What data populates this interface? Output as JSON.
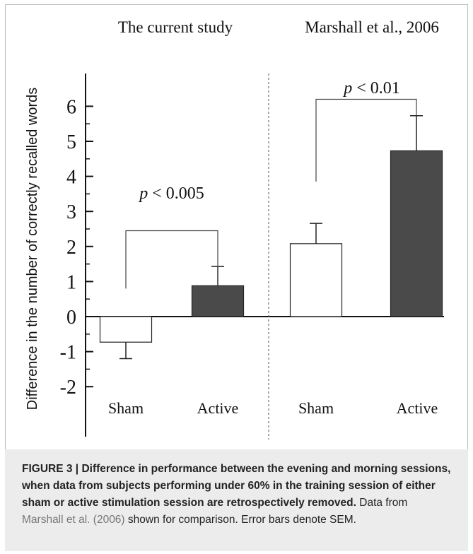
{
  "chart_data": {
    "type": "bar",
    "ylabel": "Difference in the number of correctly recalled words",
    "yticks": [
      "-2",
      "-1",
      "0",
      "1",
      "2",
      "3",
      "4",
      "5",
      "6"
    ],
    "ylim": [
      -3.4,
      7
    ],
    "groups": [
      {
        "title": "The current study",
        "categories": [
          "Sham",
          "Active"
        ],
        "values": [
          -0.73,
          0.88
        ],
        "errors": [
          0.47,
          0.55
        ],
        "colors": [
          "#ffffff",
          "#4a4a4a"
        ],
        "significance": {
          "left": "0.8",
          "right": "0.8",
          "top": "2.45",
          "p_label": "p < 0.005"
        }
      },
      {
        "title": "Marshall et al., 2006",
        "categories": [
          "Sham",
          "Active"
        ],
        "values": [
          2.08,
          4.73
        ],
        "errors": [
          0.58,
          1.0
        ],
        "colors": [
          "#ffffff",
          "#4a4a4a"
        ],
        "significance": {
          "left": "3.85",
          "right": "5.75",
          "top": "6.2",
          "p_label": "p < 0.01"
        }
      }
    ]
  },
  "caption": {
    "label": "FIGURE 3 | ",
    "title": "Difference in performance between the evening and morning sessions, when data from subjects performing under 60% in the training session of either sham or active stimulation session are retrospectively removed.",
    "text_before_link": " Data from ",
    "link": "Marshall et al. (2006)",
    "text_after_link": " shown for comparison. Error bars denote SEM."
  }
}
